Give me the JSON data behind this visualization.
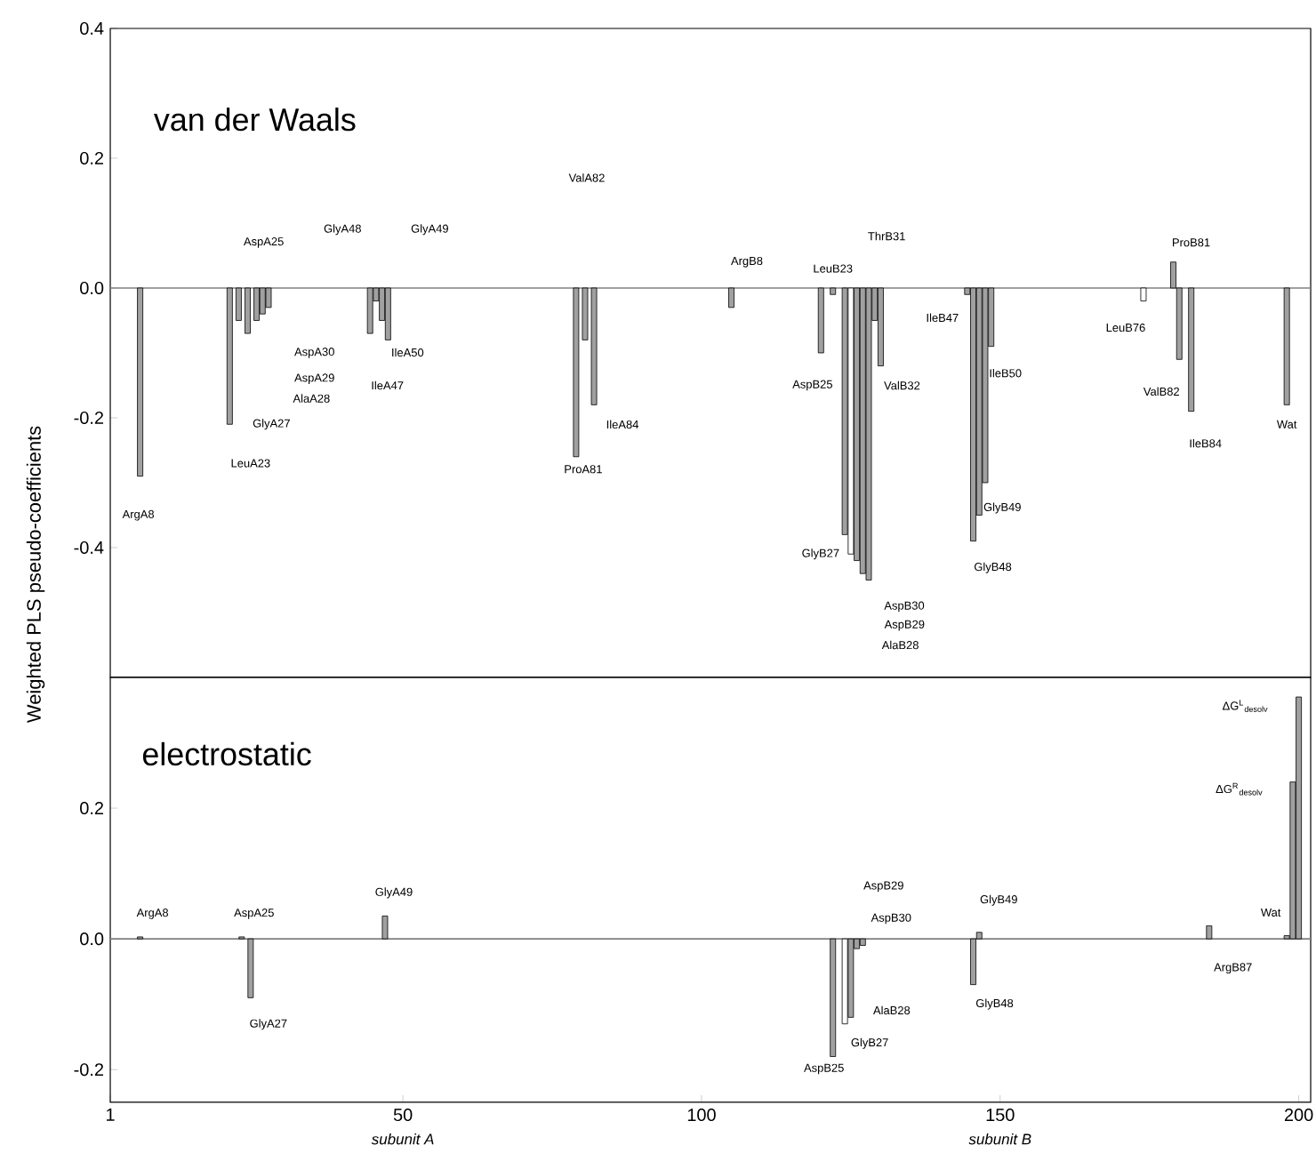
{
  "chart_data": [
    {
      "type": "bar",
      "title": "van der Waals",
      "ylabel": "Weighted PLS pseudo-coefficients",
      "x": [
        6,
        21,
        22.5,
        24,
        25.5,
        26.5,
        27.5,
        44.5,
        45.5,
        46.5,
        47.5,
        79,
        80.5,
        82,
        105,
        120,
        122,
        124,
        125,
        126,
        127,
        128,
        129,
        130,
        144.5,
        145.5,
        146.5,
        147.5,
        148.5,
        174,
        179,
        180,
        182,
        198
      ],
      "values": [
        -0.29,
        -0.21,
        -0.05,
        -0.07,
        -0.05,
        -0.04,
        -0.03,
        -0.07,
        -0.02,
        -0.05,
        -0.08,
        -0.26,
        -0.08,
        -0.18,
        -0.03,
        -0.1,
        -0.01,
        -0.38,
        -0.41,
        -0.42,
        -0.44,
        -0.45,
        -0.05,
        -0.12,
        -0.01,
        -0.39,
        -0.35,
        -0.3,
        -0.09,
        -0.02,
        0.04,
        -0.11,
        -0.19,
        -0.18
      ],
      "colors": [
        "#a0a0a0",
        "#a0a0a0",
        "#a0a0a0",
        "#a0a0a0",
        "#a0a0a0",
        "#a0a0a0",
        "#a0a0a0",
        "#a0a0a0",
        "#a0a0a0",
        "#a0a0a0",
        "#a0a0a0",
        "#a0a0a0",
        "#a0a0a0",
        "#a0a0a0",
        "#a0a0a0",
        "#a0a0a0",
        "#a0a0a0",
        "#a0a0a0",
        "#ffffff",
        "#a0a0a0",
        "#a0a0a0",
        "#a0a0a0",
        "#a0a0a0",
        "#a0a0a0",
        "#a0a0a0",
        "#a0a0a0",
        "#a0a0a0",
        "#a0a0a0",
        "#a0a0a0",
        "#ffffff",
        "#a0a0a0",
        "#a0a0a0",
        "#a0a0a0",
        "#a0a0a0"
      ],
      "xlim": [
        1,
        202
      ],
      "ylim": [
        -0.6,
        0.4
      ],
      "yticks": [
        {
          "value": -0.4,
          "label": "-0.4"
        },
        {
          "value": -0.2,
          "label": "-0.2"
        },
        {
          "value": 0,
          "label": "0.0"
        },
        {
          "value": 0.2,
          "label": "0.2"
        },
        {
          "value": 0.4,
          "label": "0.4"
        }
      ],
      "tick_labels": "y",
      "ref_lines": [
        {
          "axis": "y",
          "value": 0,
          "color": "#808080"
        }
      ],
      "annotations": [
        {
          "text": "ArgA8",
          "x": 6,
          "y": -0.29
        },
        "LeuA23",
        "GlyA27",
        "AlaA28",
        "AspA29",
        "AspA30",
        "AspA25",
        "GlyA48",
        "GlyA49",
        "IleA47",
        {
          "text": "IleA50",
          "x": 47.5,
          "y": -0.08
        },
        "ValA82",
        {
          "text": "IleA84",
          "x": 82,
          "y": -0.18
        },
        {
          "text": "ProA81",
          "x": 79,
          "y": -0.26
        },
        "ArgB8",
        "LeuB23",
        "ThrB31",
        "AspB25",
        {
          "text": "ValB32",
          "x": 130,
          "y": -0.12
        },
        {
          "text": "GlyB27",
          "x": 125,
          "y": -0.41
        },
        {
          "text": "AspB30",
          "x": 128,
          "y": -0.45
        },
        "AspB29",
        "AlaB28",
        {
          "text": "IleB47",
          "x": 144.5,
          "y": -0.01
        },
        {
          "text": "IleB50",
          "x": 148.5,
          "y": -0.09
        },
        {
          "text": "GlyB49",
          "x": 146.5,
          "y": -0.35
        },
        {
          "text": "GlyB48",
          "x": 145.5,
          "y": -0.39
        },
        {
          "text": "ProB81",
          "x": 179,
          "y": 0.04
        },
        {
          "text": "LeuB76",
          "x": 174,
          "y": -0.02
        },
        {
          "text": "ValB82",
          "x": 180,
          "y": -0.11
        },
        {
          "text": "IleB84",
          "x": 182,
          "y": -0.19
        },
        {
          "text": "Wat",
          "x": 198,
          "y": -0.18
        }
      ]
    },
    {
      "type": "bar",
      "title": "electrostatic",
      "x": [
        6,
        23,
        24.5,
        47,
        122,
        124,
        125,
        126,
        127,
        145.5,
        146.5,
        185,
        198,
        199,
        200
      ],
      "values": [
        0.003,
        0.003,
        -0.09,
        0.035,
        -0.18,
        -0.13,
        -0.12,
        -0.015,
        -0.01,
        -0.07,
        0.01,
        0.02,
        0.005,
        0.24,
        0.37
      ],
      "colors": [
        "#a0a0a0",
        "#a0a0a0",
        "#a0a0a0",
        "#a0a0a0",
        "#a0a0a0",
        "#ffffff",
        "#a0a0a0",
        "#a0a0a0",
        "#a0a0a0",
        "#a0a0a0",
        "#a0a0a0",
        "#a0a0a0",
        "#a0a0a0",
        "#a0a0a0",
        "#a0a0a0"
      ],
      "xlim": [
        1,
        202
      ],
      "ylim": [
        -0.25,
        0.4
      ],
      "xticks": [
        1,
        50,
        100,
        150,
        200
      ],
      "yticks": [
        {
          "value": -0.2,
          "label": "-0.2"
        },
        {
          "value": 0,
          "label": "0.0"
        },
        {
          "value": 0.2,
          "label": "0.2"
        }
      ],
      "ref_lines": [
        {
          "axis": "y",
          "value": 0,
          "color": "#808080"
        }
      ],
      "annotations": [
        {
          "text": "ArgA8",
          "x": 6,
          "y": 0.003
        },
        {
          "text": "AspA25",
          "x": 23,
          "y": 0.003
        },
        {
          "text": "GlyA27",
          "x": 24.5,
          "y": -0.09
        },
        {
          "text": "GlyA49",
          "x": 47,
          "y": 0.035
        },
        "AspB29",
        {
          "text": "AspB30",
          "x": 127,
          "y": -0.01
        },
        {
          "text": "AlaB28",
          "x": 125,
          "y": -0.12
        },
        {
          "text": "GlyB27",
          "x": 124,
          "y": -0.13
        },
        {
          "text": "AspB25",
          "x": 122,
          "y": -0.18
        },
        {
          "text": "GlyB49",
          "x": 146.5,
          "y": 0.01
        },
        {
          "text": "GlyB48",
          "x": 145.5,
          "y": -0.07
        },
        "ArgB87",
        {
          "text": "Wat",
          "x": 198,
          "y": 0.005
        },
        {
          "text": "ΔG$^{L}$$_{desolv}$",
          "x": 200,
          "y": 0.37
        },
        {
          "text": "ΔG$^{R}$$_{desolv}$",
          "x": 199,
          "y": 0.24
        },
        "subunit A",
        "subunit B"
      ]
    }
  ]
}
